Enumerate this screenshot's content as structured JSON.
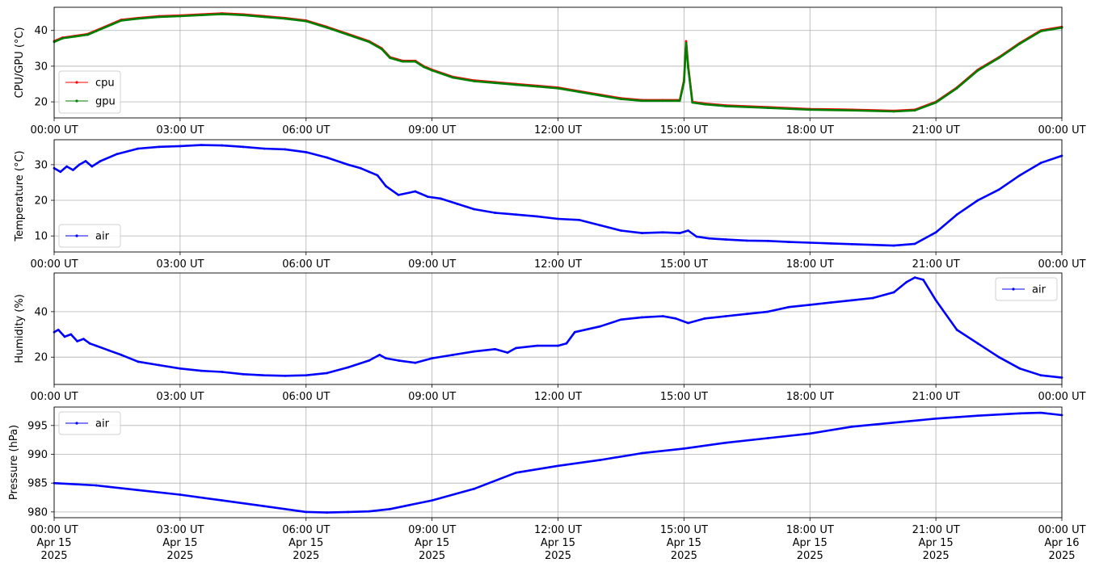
{
  "colors": {
    "cpu": "#ff0000",
    "gpu": "#008000",
    "air": "#0000ff",
    "grid": "#b0b0b0"
  },
  "chart_data": [
    {
      "type": "line",
      "ylabel": "CPU/GPU (°C)",
      "ylim": [
        15.5,
        46.5
      ],
      "yticks": [
        20,
        30,
        40
      ],
      "xlim_hours": [
        0,
        24
      ],
      "xtick_labels": [
        "00:00 UT",
        "03:00 UT",
        "06:00 UT",
        "09:00 UT",
        "12:00 UT",
        "15:00 UT",
        "18:00 UT",
        "21:00 UT",
        "00:00 UT"
      ],
      "grid": true,
      "legend": "lower-left",
      "series": [
        {
          "name": "cpu",
          "color": "#ff0000",
          "x": [
            0,
            0.2,
            0.5,
            0.8,
            1,
            1.4,
            1.6,
            2,
            2.5,
            3,
            3.5,
            4,
            4.5,
            5,
            5.5,
            6,
            6.5,
            7,
            7.5,
            7.8,
            8,
            8.3,
            8.6,
            8.8,
            9,
            9.5,
            10,
            10.5,
            11,
            11.5,
            12,
            12.5,
            13,
            13.5,
            14,
            14.5,
            14.9,
            15.0,
            15.05,
            15.1,
            15.2,
            15.5,
            16,
            17,
            18,
            19,
            20,
            20.5,
            21,
            21.5,
            22,
            22.5,
            23,
            23.5,
            24
          ],
          "y": [
            37,
            38,
            38.5,
            39,
            40,
            42,
            43,
            43.5,
            44,
            44.2,
            44.5,
            44.8,
            44.5,
            44,
            43.5,
            42.8,
            41,
            39,
            37,
            35,
            32.5,
            31.5,
            31.5,
            30,
            29,
            27,
            26,
            25.5,
            25,
            24.5,
            24,
            23,
            22,
            21,
            20.5,
            20.5,
            20.5,
            26,
            37,
            30,
            20,
            19.5,
            19,
            18.5,
            18,
            17.8,
            17.5,
            17.8,
            20,
            24,
            29,
            32.5,
            36.5,
            40,
            41
          ]
        },
        {
          "name": "gpu",
          "color": "#008000",
          "x": [
            0,
            0.2,
            0.5,
            0.8,
            1,
            1.4,
            1.6,
            2,
            2.5,
            3,
            3.5,
            4,
            4.5,
            5,
            5.5,
            6,
            6.5,
            7,
            7.5,
            7.8,
            8,
            8.3,
            8.6,
            8.8,
            9,
            9.5,
            10,
            10.5,
            11,
            11.5,
            12,
            12.5,
            13,
            13.5,
            14,
            14.5,
            14.9,
            15.0,
            15.05,
            15.1,
            15.2,
            15.5,
            16,
            17,
            18,
            19,
            20,
            20.5,
            21,
            21.5,
            22,
            22.5,
            23,
            23.5,
            24
          ],
          "y": [
            36.8,
            37.8,
            38.3,
            38.8,
            39.8,
            41.8,
            42.8,
            43.3,
            43.8,
            44,
            44.3,
            44.6,
            44.3,
            43.8,
            43.3,
            42.6,
            40.8,
            38.8,
            36.8,
            34.8,
            32.3,
            31.3,
            31.3,
            29.8,
            28.8,
            26.8,
            25.8,
            25.3,
            24.8,
            24.3,
            23.8,
            22.8,
            21.8,
            20.8,
            20.3,
            20.3,
            20.3,
            25.5,
            36.5,
            29.5,
            19.8,
            19.3,
            18.8,
            18.3,
            17.8,
            17.6,
            17.3,
            17.6,
            19.8,
            23.8,
            28.8,
            32.3,
            36.3,
            39.8,
            40.8
          ]
        }
      ]
    },
    {
      "type": "line",
      "ylabel": "Temperature (°C)",
      "ylim": [
        5.5,
        37
      ],
      "yticks": [
        10,
        20,
        30
      ],
      "xlim_hours": [
        0,
        24
      ],
      "xtick_labels": [
        "00:00 UT",
        "03:00 UT",
        "06:00 UT",
        "09:00 UT",
        "12:00 UT",
        "15:00 UT",
        "18:00 UT",
        "21:00 UT",
        "00:00 UT"
      ],
      "grid": true,
      "legend": "lower-left",
      "series": [
        {
          "name": "air",
          "color": "#0000ff",
          "x": [
            0,
            0.15,
            0.3,
            0.45,
            0.6,
            0.75,
            0.9,
            1.1,
            1.5,
            2,
            2.5,
            3,
            3.5,
            4,
            4.5,
            5,
            5.5,
            6,
            6.5,
            7,
            7.3,
            7.5,
            7.7,
            7.9,
            8.2,
            8.6,
            8.9,
            9.2,
            9.6,
            10,
            10.5,
            11,
            11.5,
            12,
            12.5,
            13,
            13.5,
            14,
            14.5,
            14.9,
            15.1,
            15.3,
            15.6,
            16,
            16.5,
            17,
            17.5,
            18,
            18.5,
            19,
            19.5,
            20,
            20.5,
            21,
            21.5,
            22,
            22.5,
            23,
            23.5,
            24
          ],
          "y": [
            29,
            28,
            29.5,
            28.5,
            30,
            31,
            29.5,
            31,
            33,
            34.5,
            35,
            35.2,
            35.5,
            35.4,
            35,
            34.5,
            34.3,
            33.5,
            32,
            30,
            29,
            28,
            27,
            24,
            21.5,
            22.5,
            21,
            20.5,
            19,
            17.5,
            16.5,
            16,
            15.5,
            14.8,
            14.5,
            13,
            11.5,
            10.8,
            11,
            10.8,
            11.5,
            9.8,
            9.3,
            9,
            8.7,
            8.6,
            8.3,
            8.1,
            7.9,
            7.7,
            7.5,
            7.3,
            7.8,
            11,
            16,
            20,
            23,
            27,
            30.5,
            32.5
          ]
        }
      ]
    },
    {
      "type": "line",
      "ylabel": "Humidity (%)",
      "ylim": [
        8,
        57
      ],
      "yticks": [
        20,
        40
      ],
      "xlim_hours": [
        0,
        24
      ],
      "xtick_labels": [
        "00:00 UT",
        "03:00 UT",
        "06:00 UT",
        "09:00 UT",
        "12:00 UT",
        "15:00 UT",
        "18:00 UT",
        "21:00 UT",
        "00:00 UT"
      ],
      "grid": true,
      "legend": "upper-right",
      "series": [
        {
          "name": "air",
          "color": "#0000ff",
          "x": [
            0,
            0.1,
            0.25,
            0.4,
            0.55,
            0.7,
            0.85,
            1,
            1.3,
            1.6,
            2,
            2.5,
            3,
            3.5,
            4,
            4.5,
            5,
            5.5,
            6,
            6.5,
            7,
            7.5,
            7.75,
            7.9,
            8.2,
            8.6,
            9,
            9.5,
            10,
            10.5,
            10.8,
            11,
            11.5,
            12,
            12.2,
            12.4,
            13,
            13.5,
            14,
            14.5,
            14.8,
            15.1,
            15.5,
            16,
            16.5,
            17,
            17.5,
            18,
            18.5,
            19,
            19.5,
            20,
            20.3,
            20.5,
            20.7,
            21,
            21.5,
            22,
            22.5,
            23,
            23.5,
            24
          ],
          "y": [
            31,
            32,
            29,
            30,
            27,
            28,
            26,
            25,
            23,
            21,
            18,
            16.5,
            15,
            14,
            13.5,
            12.5,
            12,
            11.8,
            12,
            13,
            15.5,
            18.5,
            21,
            19.5,
            18.5,
            17.5,
            19.5,
            21,
            22.5,
            23.5,
            22,
            24,
            25,
            25,
            26,
            31,
            33.5,
            36.5,
            37.5,
            38,
            37,
            35,
            37,
            38,
            39,
            40,
            42,
            43,
            44,
            45,
            46,
            48.5,
            53,
            55,
            54,
            45,
            32,
            26,
            20,
            15,
            12,
            11
          ]
        }
      ]
    },
    {
      "type": "line",
      "ylabel": "Pressure (hPa)",
      "ylim": [
        979,
        998.2
      ],
      "yticks": [
        980,
        985,
        990,
        995
      ],
      "xlim_hours": [
        0,
        24
      ],
      "xtick_labels": [
        [
          "00:00 UT",
          "Apr 15",
          "2025"
        ],
        [
          "03:00 UT",
          "Apr 15",
          "2025"
        ],
        [
          "06:00 UT",
          "Apr 15",
          "2025"
        ],
        [
          "09:00 UT",
          "Apr 15",
          "2025"
        ],
        [
          "12:00 UT",
          "Apr 15",
          "2025"
        ],
        [
          "15:00 UT",
          "Apr 15",
          "2025"
        ],
        [
          "18:00 UT",
          "Apr 15",
          "2025"
        ],
        [
          "21:00 UT",
          "Apr 15",
          "2025"
        ],
        [
          "00:00 UT",
          "Apr 16",
          "2025"
        ]
      ],
      "grid": true,
      "legend": "upper-left",
      "series": [
        {
          "name": "air",
          "color": "#0000ff",
          "x": [
            0,
            1,
            2,
            3,
            4,
            5,
            6,
            6.5,
            7,
            7.5,
            8,
            9,
            10,
            11,
            12,
            13,
            14,
            15,
            16,
            17,
            18,
            19,
            20,
            21,
            22,
            23,
            23.5,
            24
          ],
          "y": [
            985,
            984.6,
            983.8,
            983,
            982,
            981,
            980,
            979.9,
            980,
            980.1,
            980.5,
            982,
            984,
            986.8,
            988,
            989,
            990.2,
            991,
            992,
            992.8,
            993.6,
            994.8,
            995.5,
            996.2,
            996.7,
            997.1,
            997.2,
            996.8
          ]
        }
      ]
    }
  ]
}
